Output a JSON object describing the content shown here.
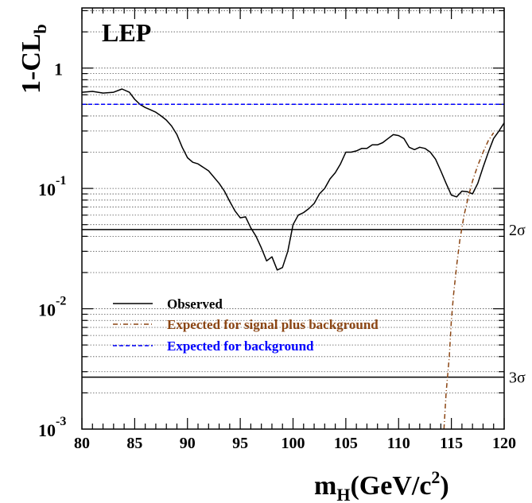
{
  "chart_data": {
    "type": "line",
    "title": "LEP",
    "xlabel": "m",
    "xlabel_sub": "H",
    "xlabel_rest": "(GeV/c",
    "xlabel_sup": "2",
    "xlabel_end": ")",
    "ylabel": "1-CL",
    "ylabel_sub": "b",
    "xlim": [
      80,
      120
    ],
    "ylim": [
      0.001,
      3.16
    ],
    "yscale": "log",
    "grid": "horizontal minor dotted",
    "x_ticks": [
      "80",
      "85",
      "90",
      "95",
      "100",
      "105",
      "110",
      "115",
      "120"
    ],
    "y_ticks": [
      {
        "value": 1,
        "base": "1",
        "exp": ""
      },
      {
        "value": 0.1,
        "base": "10",
        "exp": "-1"
      },
      {
        "value": 0.01,
        "base": "10",
        "exp": "-2"
      },
      {
        "value": 0.001,
        "base": "10",
        "exp": "-3"
      }
    ],
    "sigma_lines": [
      {
        "label": "2σ",
        "value": 0.0455
      },
      {
        "label": "3σ",
        "value": 0.0027
      }
    ],
    "legend_position": "lower-left",
    "series": [
      {
        "name": "Observed",
        "style": "solid",
        "color": "#000000",
        "x": [
          80,
          81,
          82,
          83,
          83.8,
          84.5,
          85,
          85.5,
          86,
          86.5,
          87,
          87.5,
          88,
          88.5,
          89,
          89.5,
          90,
          90.5,
          91,
          92,
          93,
          93.5,
          94,
          94.5,
          95,
          95.5,
          96,
          96.5,
          97,
          97.5,
          98,
          98.5,
          99,
          99.5,
          100,
          100.5,
          101,
          101.5,
          102,
          102.5,
          103,
          103.5,
          104,
          104.5,
          105,
          105.5,
          106,
          106.5,
          107,
          107.5,
          108,
          108.5,
          109,
          109.5,
          110,
          110.5,
          111,
          111.5,
          112,
          112.5,
          113,
          113.5,
          114,
          114.5,
          115,
          115.5,
          116,
          116.5,
          117,
          117.5,
          118,
          118.5,
          119,
          119.5,
          120
        ],
        "y": [
          0.63,
          0.64,
          0.62,
          0.63,
          0.67,
          0.63,
          0.55,
          0.5,
          0.47,
          0.45,
          0.43,
          0.4,
          0.37,
          0.33,
          0.28,
          0.22,
          0.18,
          0.165,
          0.16,
          0.14,
          0.11,
          0.095,
          0.078,
          0.065,
          0.057,
          0.058,
          0.047,
          0.04,
          0.032,
          0.025,
          0.027,
          0.021,
          0.022,
          0.03,
          0.05,
          0.06,
          0.063,
          0.068,
          0.075,
          0.09,
          0.1,
          0.12,
          0.135,
          0.16,
          0.2,
          0.2,
          0.205,
          0.215,
          0.215,
          0.23,
          0.23,
          0.24,
          0.26,
          0.28,
          0.275,
          0.26,
          0.22,
          0.21,
          0.22,
          0.215,
          0.2,
          0.175,
          0.14,
          0.11,
          0.088,
          0.085,
          0.095,
          0.094,
          0.09,
          0.11,
          0.15,
          0.2,
          0.26,
          0.3,
          0.35
        ]
      },
      {
        "name": "Expected for signal plus background",
        "style": "dash-dot",
        "color": "#8b4513",
        "x": [
          114.3,
          114.5,
          114.8,
          115.0,
          115.2,
          115.5,
          115.8,
          116.2,
          116.6,
          117.0,
          117.5,
          118.0,
          118.5,
          119.0
        ],
        "y": [
          0.001,
          0.002,
          0.004,
          0.008,
          0.013,
          0.023,
          0.037,
          0.06,
          0.085,
          0.115,
          0.155,
          0.2,
          0.25,
          0.29
        ]
      },
      {
        "name": "Expected for background",
        "style": "dash",
        "color": "#0000ff",
        "x": [
          80,
          120
        ],
        "y": [
          0.5,
          0.5
        ]
      }
    ]
  }
}
